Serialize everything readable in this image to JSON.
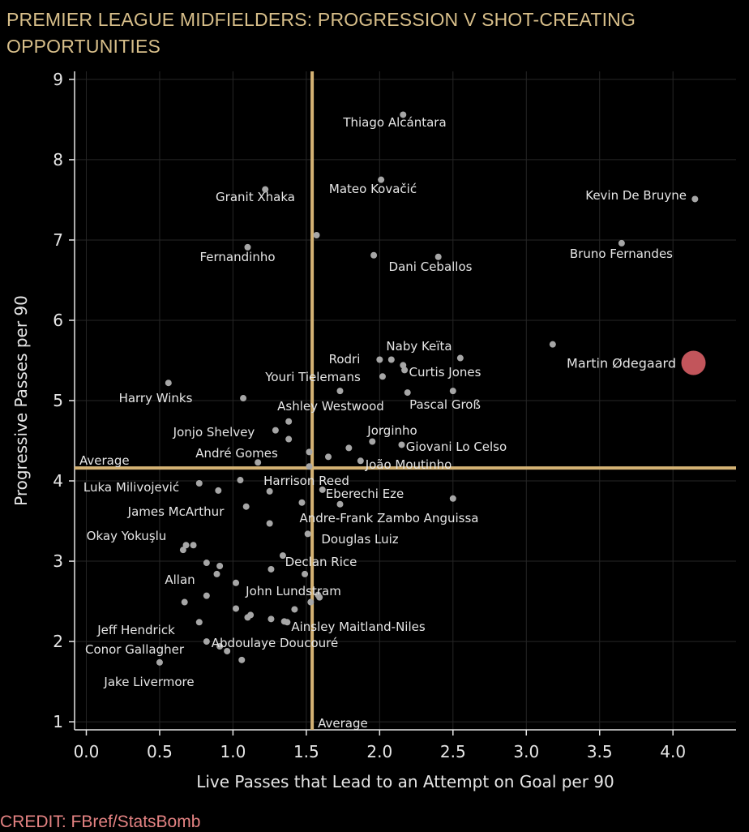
{
  "title": "PREMIER LEAGUE MIDFIELDERS: PROGRESSION V SHOT-CREATING OPPORTUNITIES",
  "credit": "CREDIT: FBref/StatsBomb",
  "colors": {
    "background": "#000000",
    "title": "#d8bf8a",
    "average_line": "#d4b274",
    "point": "#a6a6a6",
    "highlight": "#c2555b",
    "credit": "#e58383",
    "text": "#e6e6e6"
  },
  "chart_data": {
    "type": "scatter",
    "xlabel": "Live Passes that Lead to an Attempt on Goal per 90",
    "ylabel": "Progressive Passes per 90",
    "xlim": [
      -0.08,
      4.43
    ],
    "ylim": [
      0.9,
      9.1
    ],
    "xticks": [
      "0.0",
      "0.5",
      "1.0",
      "1.5",
      "2.0",
      "2.5",
      "3.0",
      "3.5",
      "4.0"
    ],
    "yticks": [
      "1",
      "2",
      "3",
      "4",
      "5",
      "6",
      "7",
      "8",
      "9"
    ],
    "grid": true,
    "x_average": 1.54,
    "y_average": 4.16,
    "x_average_label": "Average",
    "y_average_label": "Average",
    "highlight": {
      "name": "Martin Ødegaard",
      "x": 4.14,
      "y": 5.47
    },
    "labeled_points": [
      {
        "name": "Thiago Alcántara",
        "x": 2.16,
        "y": 8.56
      },
      {
        "name": "Mateo Kovačić",
        "x": 2.01,
        "y": 7.75
      },
      {
        "name": "Granit Xhaka",
        "x": 1.22,
        "y": 7.63
      },
      {
        "name": "Kevin De Bruyne",
        "x": 4.15,
        "y": 7.51
      },
      {
        "name": "Bruno Fernandes",
        "x": 3.65,
        "y": 6.96
      },
      {
        "name": "Fernandinho",
        "x": 1.1,
        "y": 6.91
      },
      {
        "name": "Dani Ceballos",
        "x": 2.4,
        "y": 6.79
      },
      {
        "name": "Naby Keïta",
        "x": 2.55,
        "y": 5.53
      },
      {
        "name": "Rodri",
        "x": 2.0,
        "y": 5.51
      },
      {
        "name": "Curtis Jones",
        "x": 2.17,
        "y": 5.38
      },
      {
        "name": "Youri Tielemans",
        "x": 2.02,
        "y": 5.3
      },
      {
        "name": "Harry Winks",
        "x": 0.56,
        "y": 5.22
      },
      {
        "name": "Pascal Groß",
        "x": 2.5,
        "y": 5.12
      },
      {
        "name": "Ashley Westwood",
        "x": 1.73,
        "y": 5.12
      },
      {
        "name": "Jonjo Shelvey",
        "x": 1.29,
        "y": 4.63
      },
      {
        "name": "Jorginho",
        "x": 1.95,
        "y": 4.49
      },
      {
        "name": "Giovani Lo Celso",
        "x": 2.15,
        "y": 4.45
      },
      {
        "name": "André Gomes",
        "x": 1.17,
        "y": 4.23
      },
      {
        "name": "João Moutinho",
        "x": 1.87,
        "y": 4.25
      },
      {
        "name": "Harrison Reed",
        "x": 1.05,
        "y": 4.01
      },
      {
        "name": "Luka Milivojević",
        "x": 0.77,
        "y": 3.97
      },
      {
        "name": "Eberechi Eze",
        "x": 1.61,
        "y": 3.89
      },
      {
        "name": "James McArthur",
        "x": 1.09,
        "y": 3.68
      },
      {
        "name": "Andre-Frank Zambo Anguissa",
        "x": 1.73,
        "y": 3.71
      },
      {
        "name": "Douglas Luiz",
        "x": 1.51,
        "y": 3.34
      },
      {
        "name": "Okay Yokuşlu",
        "x": 0.73,
        "y": 3.2
      },
      {
        "name": "Declan Rice",
        "x": 1.34,
        "y": 3.07
      },
      {
        "name": "Allan",
        "x": 0.89,
        "y": 2.84
      },
      {
        "name": "John Lundstram",
        "x": 1.49,
        "y": 2.84
      },
      {
        "name": "Ainsley Maitland-Niles",
        "x": 1.59,
        "y": 2.55
      },
      {
        "name": "Jeff Hendrick",
        "x": 0.77,
        "y": 2.24
      },
      {
        "name": "Abdoulaye Doucouré",
        "x": 1.37,
        "y": 2.24
      },
      {
        "name": "Conor Gallagher",
        "x": 0.82,
        "y": 2.0
      },
      {
        "name": "Jake Livermore",
        "x": 0.5,
        "y": 1.74
      }
    ],
    "unlabeled_points": [
      {
        "x": 1.57,
        "y": 7.06
      },
      {
        "x": 1.96,
        "y": 6.81
      },
      {
        "x": 3.18,
        "y": 5.7
      },
      {
        "x": 2.08,
        "y": 5.51
      },
      {
        "x": 2.16,
        "y": 5.44
      },
      {
        "x": 2.19,
        "y": 5.1
      },
      {
        "x": 1.07,
        "y": 5.03
      },
      {
        "x": 1.38,
        "y": 4.74
      },
      {
        "x": 1.38,
        "y": 4.52
      },
      {
        "x": 1.79,
        "y": 4.41
      },
      {
        "x": 1.52,
        "y": 4.36
      },
      {
        "x": 1.65,
        "y": 4.3
      },
      {
        "x": 1.52,
        "y": 4.18
      },
      {
        "x": 0.9,
        "y": 3.88
      },
      {
        "x": 1.25,
        "y": 3.87
      },
      {
        "x": 2.5,
        "y": 3.78
      },
      {
        "x": 1.47,
        "y": 3.73
      },
      {
        "x": 1.25,
        "y": 3.47
      },
      {
        "x": 0.68,
        "y": 3.2
      },
      {
        "x": 0.66,
        "y": 3.14
      },
      {
        "x": 0.82,
        "y": 2.98
      },
      {
        "x": 0.91,
        "y": 2.94
      },
      {
        "x": 1.26,
        "y": 2.9
      },
      {
        "x": 1.02,
        "y": 2.73
      },
      {
        "x": 1.58,
        "y": 2.58
      },
      {
        "x": 0.82,
        "y": 2.57
      },
      {
        "x": 1.53,
        "y": 2.49
      },
      {
        "x": 0.67,
        "y": 2.49
      },
      {
        "x": 1.02,
        "y": 2.41
      },
      {
        "x": 1.42,
        "y": 2.4
      },
      {
        "x": 1.12,
        "y": 2.33
      },
      {
        "x": 1.1,
        "y": 2.3
      },
      {
        "x": 1.26,
        "y": 2.28
      },
      {
        "x": 1.35,
        "y": 2.25
      },
      {
        "x": 0.91,
        "y": 1.94
      },
      {
        "x": 0.96,
        "y": 1.88
      },
      {
        "x": 1.06,
        "y": 1.77
      }
    ]
  }
}
